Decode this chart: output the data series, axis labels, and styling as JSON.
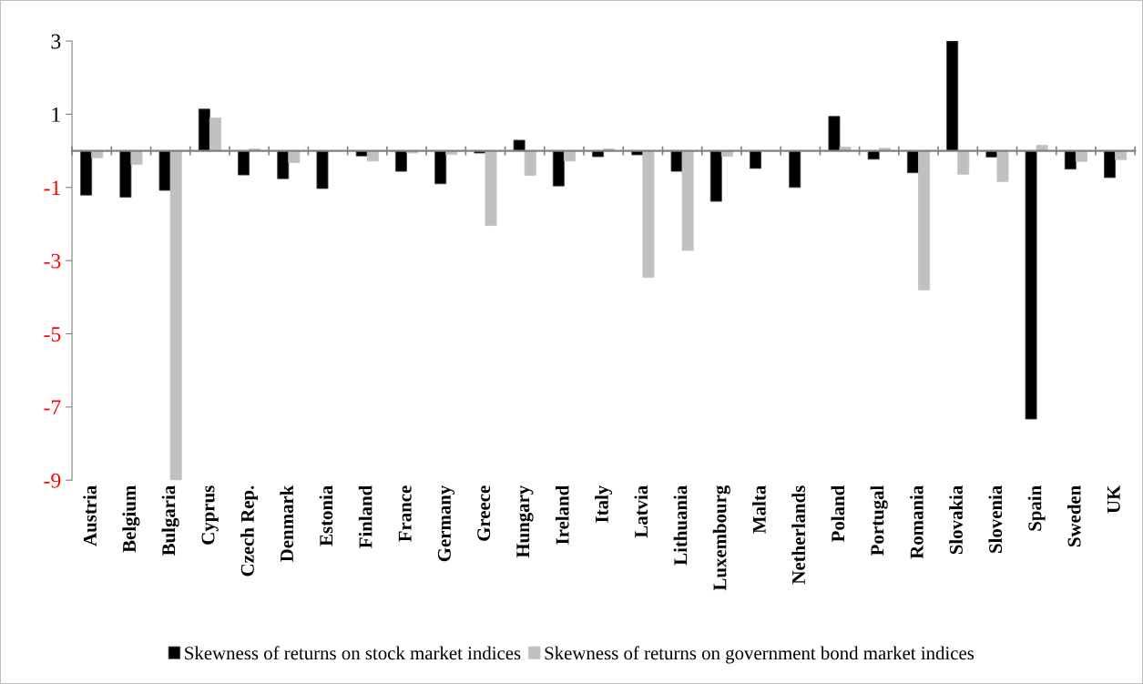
{
  "chart_data": {
    "type": "bar",
    "categories": [
      "Austria",
      "Belgium",
      "Bulgaria",
      "Cyprus",
      "Czech Rep.",
      "Denmark",
      "Estonia",
      "Finland",
      "France",
      "Germany",
      "Greece",
      "Hungary",
      "Ireland",
      "Italy",
      "Latvia",
      "Lithuania",
      "Luxembourg",
      "Malta",
      "Netherlands",
      "Poland",
      "Portugal",
      "Romania",
      "Slovakia",
      "Slovenia",
      "Spain",
      "Sweden",
      "UK"
    ],
    "series": [
      {
        "name": "Skewness of returns on stock market indices",
        "color": "#000000",
        "values": [
          -1.21,
          -1.27,
          -1.08,
          1.14,
          -0.66,
          -0.76,
          -1.03,
          -0.14,
          -0.56,
          -0.9,
          -0.06,
          0.29,
          -0.96,
          -0.16,
          -0.11,
          -0.56,
          -1.38,
          -0.48,
          -1.0,
          0.94,
          -0.23,
          -0.6,
          3.0,
          -0.17,
          -7.33,
          -0.5,
          -0.73
        ]
      },
      {
        "name": "Skewness of returns on government bond market indices",
        "color": "#c0c0c0",
        "values": [
          -0.19,
          -0.37,
          -9.0,
          0.9,
          0.05,
          -0.32,
          0,
          -0.28,
          -0.06,
          -0.1,
          -2.04,
          -0.67,
          -0.28,
          0.05,
          -3.46,
          -2.72,
          -0.15,
          0,
          0,
          0.1,
          0.07,
          -3.8,
          -0.64,
          -0.84,
          0.15,
          -0.29,
          -0.24
        ]
      }
    ],
    "ylim": [
      -9,
      3
    ],
    "yticks": [
      3,
      1,
      -1,
      -3,
      -5,
      -7,
      -9
    ],
    "grid": false,
    "legend": "bottom"
  }
}
